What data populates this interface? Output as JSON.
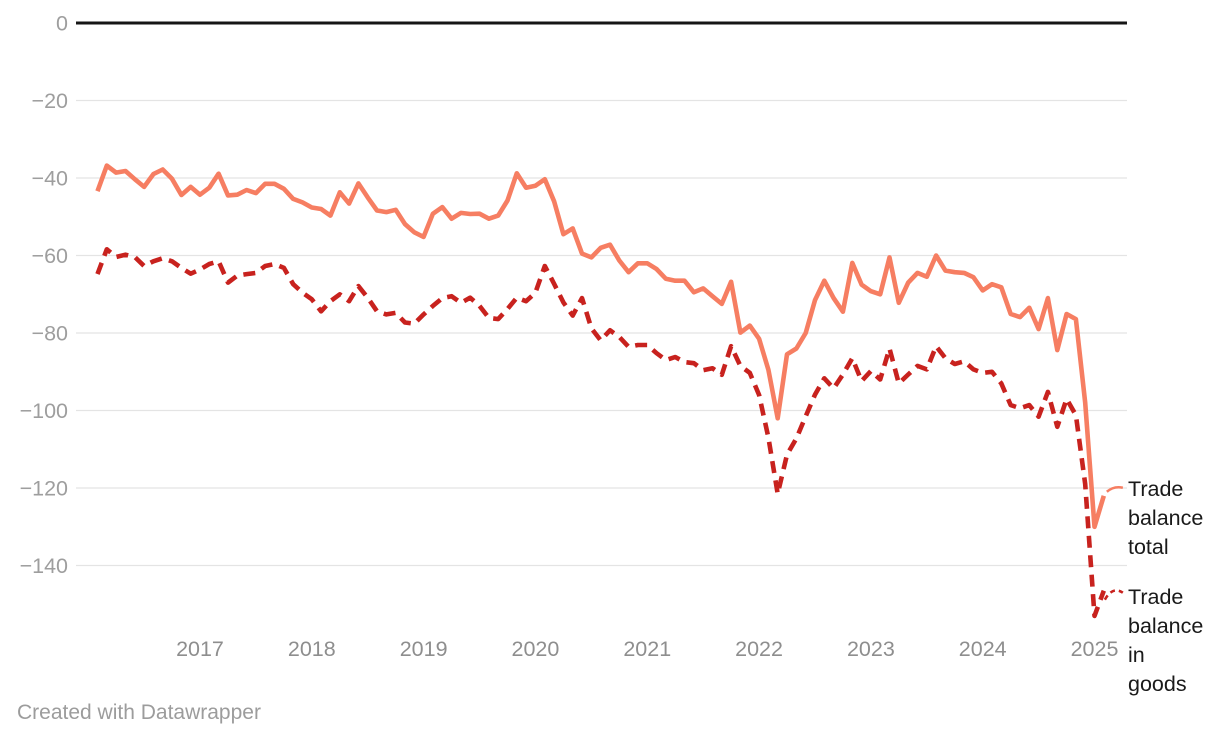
{
  "chart_data": {
    "type": "line",
    "title": "",
    "x_start": "2016-02",
    "x_frequency": "monthly",
    "x_tick_labels": [
      "2017",
      "2018",
      "2019",
      "2020",
      "2021",
      "2022",
      "2023",
      "2024",
      "2025"
    ],
    "y_ticks": [
      0,
      -20,
      -40,
      -60,
      -80,
      -100,
      -120,
      -140
    ],
    "ylim": [
      -157,
      0
    ],
    "grid": "horizontal",
    "legend_position": "right-of-line-ends",
    "series": [
      {
        "name": "Trade balance total",
        "style": "solid",
        "color": "#f67e62",
        "values": [
          -43.4,
          -36.8,
          -38.6,
          -38.2,
          -40.3,
          -42.3,
          -39.0,
          -37.8,
          -40.2,
          -44.4,
          -42.3,
          -44.3,
          -42.5,
          -38.9,
          -44.5,
          -44.3,
          -43.1,
          -43.9,
          -41.5,
          -41.5,
          -42.8,
          -45.4,
          -46.3,
          -47.6,
          -48.0,
          -49.7,
          -43.7,
          -46.6,
          -41.4,
          -45.0,
          -48.4,
          -48.8,
          -48.2,
          -51.9,
          -54.0,
          -55.2,
          -49.2,
          -47.5,
          -50.5,
          -49.0,
          -49.3,
          -49.2,
          -50.5,
          -49.7,
          -45.8,
          -38.8,
          -42.5,
          -42.0,
          -40.3,
          -46.0,
          -54.5,
          -53.0,
          -59.5,
          -60.5,
          -58.0,
          -57.2,
          -61.3,
          -64.3,
          -62.0,
          -62.0,
          -63.5,
          -66.0,
          -66.5,
          -66.5,
          -69.5,
          -68.5,
          -70.5,
          -72.5,
          -66.8,
          -79.9,
          -78.1,
          -81.5,
          -89.5,
          -102.0,
          -85.5,
          -84.0,
          -80.0,
          -71.5,
          -66.5,
          -71.0,
          -74.5,
          -61.9,
          -67.5,
          -69.2,
          -70.0,
          -60.5,
          -72.2,
          -67.0,
          -64.5,
          -65.5,
          -60.0,
          -63.9,
          -64.3,
          -64.5,
          -65.6,
          -69.0,
          -67.4,
          -68.2,
          -75.1,
          -75.9,
          -73.5,
          -79.0,
          -71.0,
          -84.4,
          -75.1,
          -76.4,
          -98.0,
          -130.0,
          -122.0
        ]
      },
      {
        "name": "Trade balance in goods",
        "style": "dashed",
        "color": "#c8221e",
        "values": [
          -64.8,
          -58.4,
          -60.4,
          -59.8,
          -60.4,
          -62.7,
          -61.5,
          -60.7,
          -61.5,
          -63.2,
          -64.7,
          -63.6,
          -62.2,
          -61.5,
          -67.0,
          -65.2,
          -64.8,
          -64.5,
          -62.7,
          -62.2,
          -63.2,
          -67.4,
          -69.6,
          -71.3,
          -74.4,
          -71.8,
          -70.0,
          -71.8,
          -67.9,
          -70.9,
          -74.4,
          -75.2,
          -74.8,
          -77.3,
          -77.6,
          -75.2,
          -73.0,
          -71.0,
          -70.5,
          -72.2,
          -70.9,
          -73.0,
          -76.1,
          -76.4,
          -73.8,
          -70.9,
          -71.8,
          -69.6,
          -62.7,
          -67.3,
          -72.1,
          -75.5,
          -71.0,
          -78.8,
          -81.9,
          -79.3,
          -81.0,
          -83.6,
          -83.1,
          -83.1,
          -85.2,
          -87.0,
          -86.2,
          -87.5,
          -87.8,
          -89.6,
          -89.1,
          -90.8,
          -83.4,
          -88.5,
          -90.3,
          -96.0,
          -107.0,
          -121.5,
          -111.4,
          -107.2,
          -101.5,
          -95.9,
          -91.7,
          -94.3,
          -90.7,
          -86.5,
          -92.4,
          -89.8,
          -92.0,
          -84.0,
          -93.0,
          -90.7,
          -88.5,
          -89.4,
          -83.4,
          -86.5,
          -88.0,
          -87.3,
          -89.4,
          -90.3,
          -90.0,
          -93.0,
          -98.6,
          -99.4,
          -98.6,
          -101.6,
          -95.2,
          -104.2,
          -97.0,
          -101.2,
          -119.0,
          -153.0,
          -146.5
        ]
      }
    ]
  },
  "legend": {
    "total_lines": [
      "Trade",
      "balance",
      "total"
    ],
    "goods_lines": [
      "Trade",
      "balance",
      "in",
      "goods"
    ]
  },
  "footer": {
    "text": "Created with Datawrapper"
  },
  "colors": {
    "series_total": "#f67e62",
    "series_goods": "#c8221e",
    "axis_text": "#9e9e9e",
    "x_axis_text": "#8e8e8e",
    "gridline": "#e4e4e4",
    "zero_line": "#161616",
    "legend_text": "#1a1a1a",
    "footer_text": "#9c9c9c"
  }
}
